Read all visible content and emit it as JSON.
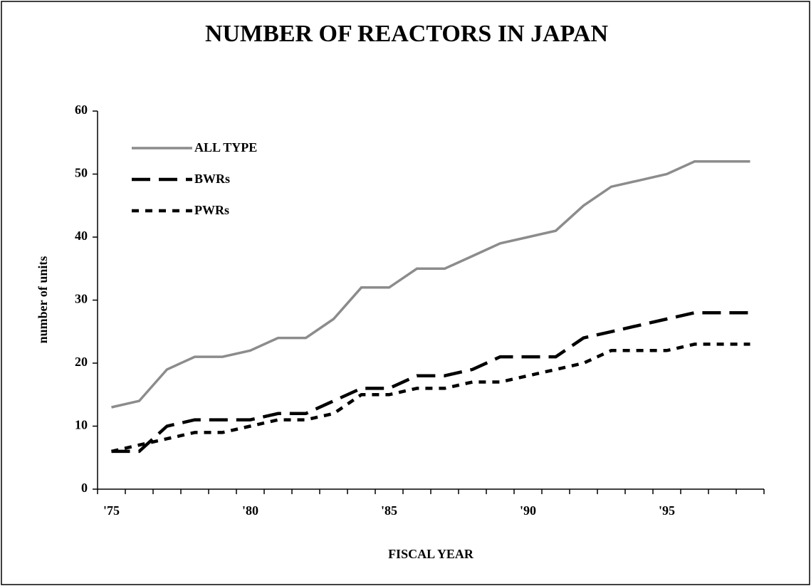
{
  "chart_data": {
    "type": "line",
    "title": "NUMBER OF REACTORS IN JAPAN",
    "x_label": "FISCAL YEAR",
    "y_label": "number of units",
    "categories": [
      "'75",
      null,
      null,
      null,
      null,
      "'80",
      null,
      null,
      null,
      null,
      "'85",
      null,
      null,
      null,
      null,
      "'90",
      null,
      null,
      null,
      null,
      "'95",
      null,
      null,
      null
    ],
    "series": [
      {
        "name": "ALL TYPE",
        "color": "#8c8c8c",
        "line_style": "solid",
        "values": [
          13,
          14,
          19,
          21,
          21,
          22,
          24,
          24,
          27,
          32,
          32,
          35,
          35,
          37,
          39,
          40,
          41,
          45,
          48,
          49,
          50,
          52,
          52,
          52
        ]
      },
      {
        "name": "BWRs",
        "color": "#000000",
        "line_style": "long-dash",
        "values": [
          6,
          6,
          10,
          11,
          11,
          11,
          12,
          12,
          14,
          16,
          16,
          18,
          18,
          19,
          21,
          21,
          21,
          24,
          25,
          26,
          27,
          28,
          28,
          28
        ]
      },
      {
        "name": "PWRs",
        "color": "#000000",
        "line_style": "short-dash",
        "values": [
          6,
          7,
          8,
          9,
          9,
          10,
          11,
          11,
          12,
          15,
          15,
          16,
          16,
          17,
          17,
          18,
          19,
          20,
          22,
          22,
          22,
          23,
          23,
          23
        ]
      }
    ],
    "ylim": [
      0,
      60
    ],
    "yticks": [
      0,
      10,
      20,
      30,
      40,
      50,
      60
    ],
    "grid": false,
    "legend": "upper left"
  }
}
